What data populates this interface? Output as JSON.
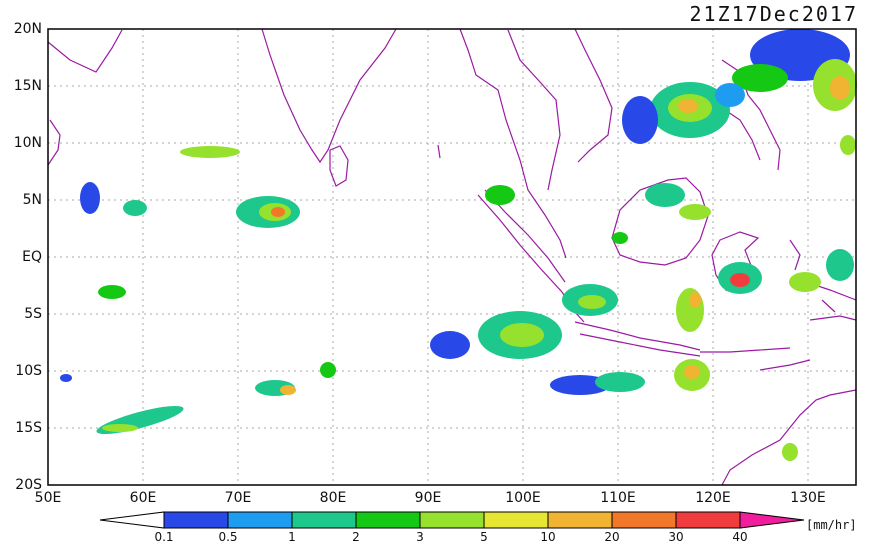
{
  "title": "21Z17Dec2017",
  "lat_labels": [
    "20N",
    "15N",
    "10N",
    "5N",
    "EQ",
    "5S",
    "10S",
    "15S",
    "20S"
  ],
  "lon_labels": [
    "50E",
    "60E",
    "70E",
    "80E",
    "90E",
    "100E",
    "110E",
    "120E",
    "130E"
  ],
  "colorbar": {
    "levels": [
      "0.1",
      "0.5",
      "1",
      "2",
      "3",
      "5",
      "10",
      "20",
      "30",
      "40"
    ],
    "colors": [
      "#2849e8",
      "#1e9cf0",
      "#1ec88c",
      "#14c814",
      "#96e12d",
      "#e6e632",
      "#f0b432",
      "#f07828",
      "#f03c3c",
      "#f01e9c"
    ],
    "units": "[mm/hr]"
  }
}
